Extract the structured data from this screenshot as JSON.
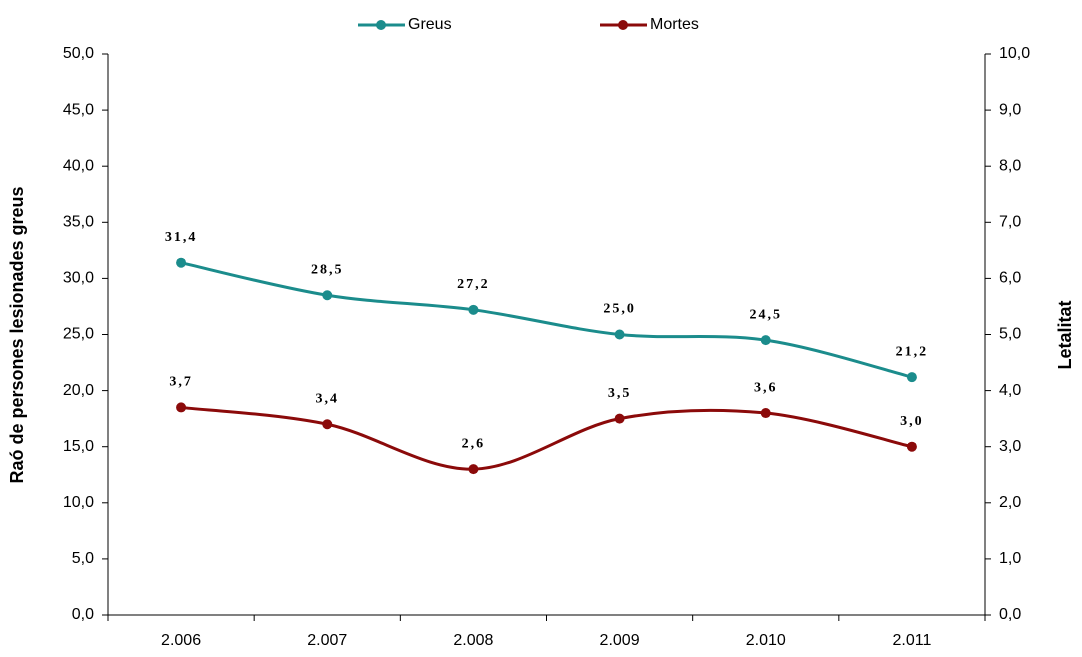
{
  "chart_data": {
    "type": "line",
    "categories": [
      "2.006",
      "2.007",
      "2.008",
      "2.009",
      "2.010",
      "2.011"
    ],
    "series": [
      {
        "name": "Greus",
        "color": "#1b8c8c",
        "values": [
          31.4,
          28.5,
          27.2,
          25.0,
          24.5,
          21.2
        ],
        "value_labels": [
          "31,4",
          "28,5",
          "27,2",
          "25,0",
          "24,5",
          "21,2"
        ]
      },
      {
        "name": "Mortes",
        "color": "#8b0a0a",
        "axis": "y2",
        "values": [
          3.7,
          3.4,
          2.6,
          3.5,
          3.6,
          3.0
        ],
        "value_labels": [
          "3,7",
          "3,4",
          "2,6",
          "3,5",
          "3,6",
          "3,0"
        ]
      }
    ],
    "y_label": "Raó de persones lesionades greus",
    "y2_label": "Letalitat",
    "ylim": [
      0,
      50
    ],
    "yticks": [
      {
        "value": 0,
        "label": "0,0"
      },
      {
        "value": 5,
        "label": "5,0"
      },
      {
        "value": 10,
        "label": "10,0"
      },
      {
        "value": 15,
        "label": "15,0"
      },
      {
        "value": 20,
        "label": "20,0"
      },
      {
        "value": 25,
        "label": "25,0"
      },
      {
        "value": 30,
        "label": "30,0"
      },
      {
        "value": 35,
        "label": "35,0"
      },
      {
        "value": 40,
        "label": "40,0"
      },
      {
        "value": 45,
        "label": "45,0"
      },
      {
        "value": 50,
        "label": "50,0"
      }
    ],
    "y2lim": [
      0,
      10
    ],
    "y2ticks": [
      {
        "value": 0,
        "label": "0,0"
      },
      {
        "value": 1,
        "label": "1,0"
      },
      {
        "value": 2,
        "label": "2,0"
      },
      {
        "value": 3,
        "label": "3,0"
      },
      {
        "value": 4,
        "label": "4,0"
      },
      {
        "value": 5,
        "label": "5,0"
      },
      {
        "value": 6,
        "label": "6,0"
      },
      {
        "value": 7,
        "label": "7,0"
      },
      {
        "value": 8,
        "label": "8,0"
      },
      {
        "value": 9,
        "label": "9,0"
      },
      {
        "value": 10,
        "label": "10,0"
      }
    ],
    "legend": "top",
    "grid": false,
    "smooth": true
  }
}
